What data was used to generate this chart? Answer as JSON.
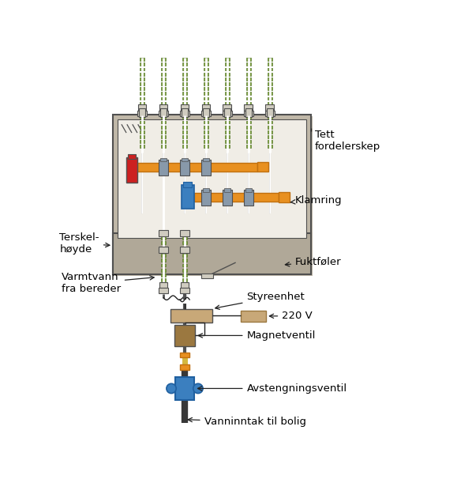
{
  "fig_w": 5.79,
  "fig_h": 6.11,
  "dpi": 100,
  "co": "#E89020",
  "cod": "#C07010",
  "cr": "#CC2020",
  "cbl": "#3B7FBF",
  "cbld": "#2060A0",
  "cg": "#5A7A30",
  "cgl": "#7EA040",
  "cgb": "#C0B8A8",
  "cgi": "#E8E4DC",
  "cgi2": "#F0EDE6",
  "cgf": "#B0A898",
  "ct": "#C8A878",
  "ctd": "#9B7840",
  "cw": "#FFFFFF",
  "ck": "#222222",
  "cd": "#505050",
  "cpd": "#383838",
  "cco": "#8899AA",
  "clg": "#D0CCC0",
  "labels": {
    "tett": "Tett\nfordelerskep",
    "klamring": "Klamring",
    "fukt": "Fuktføler",
    "terskel": "Terskel-\nhøyde",
    "varmtvann": "Varmtvann\nfra bereder",
    "styre": "Styreenhet",
    "v220": "220 V",
    "magnet": "Magnetventil",
    "avst": "Avstengningsventil",
    "vann": "Vanninntak til bolig"
  }
}
